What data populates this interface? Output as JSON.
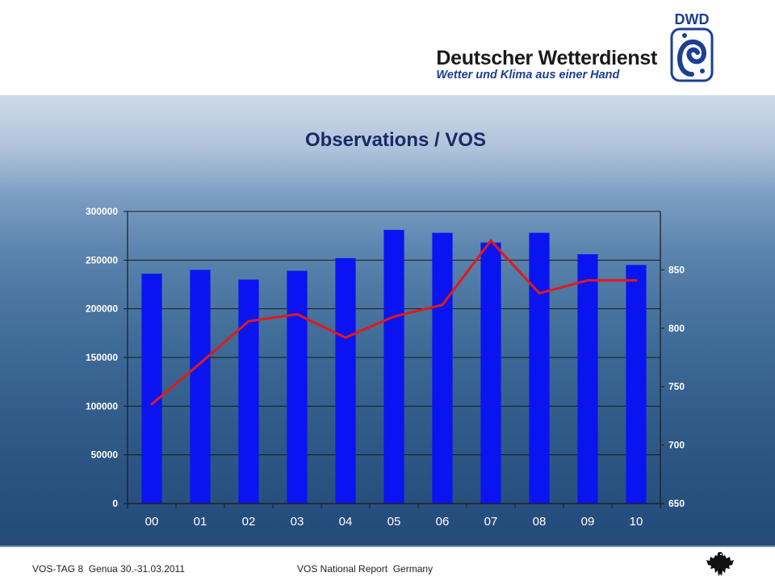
{
  "header": {
    "logo_abbrev": "DWD",
    "logo_name": "Deutscher Wetterdienst",
    "logo_slogan": "Wetter und Klima aus einer Hand"
  },
  "chart_data": {
    "type": "bar",
    "title": "Observations / VOS",
    "categories": [
      "00",
      "01",
      "02",
      "03",
      "04",
      "05",
      "06",
      "07",
      "08",
      "09",
      "10"
    ],
    "series": [
      {
        "type": "bar",
        "axis": "left",
        "color": "#0a14f0",
        "values": [
          236000,
          240000,
          230000,
          239000,
          252000,
          281000,
          278000,
          268000,
          278000,
          256000,
          245000
        ]
      },
      {
        "type": "line",
        "axis": "right",
        "color": "#e01a1a",
        "values": [
          735,
          770,
          806,
          812,
          792,
          810,
          820,
          875,
          830,
          841,
          841
        ]
      }
    ],
    "y_left": {
      "min": 0,
      "max": 300000,
      "ticks": [
        "0",
        "50000",
        "100000",
        "150000",
        "200000",
        "250000",
        "300000"
      ]
    },
    "y_right": {
      "min": 650,
      "max": 900,
      "ticks": [
        "650",
        "700",
        "750",
        "800",
        "850"
      ]
    },
    "grid": true
  },
  "footer": {
    "left": "VOS-TAG 8  Genua 30.-31.03.2011",
    "mid": "VOS National Report  Germany"
  }
}
